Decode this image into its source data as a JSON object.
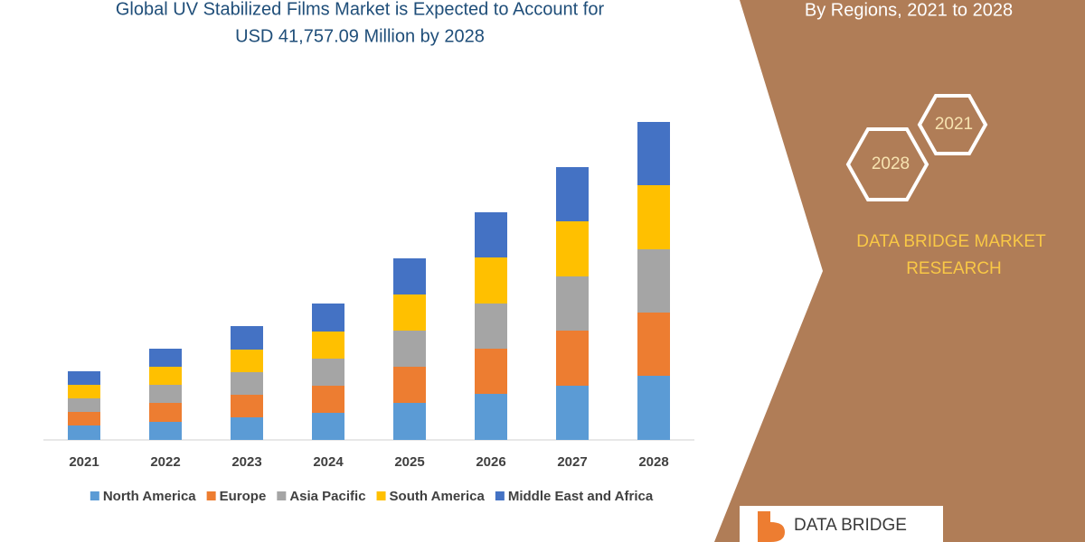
{
  "chart_data": {
    "type": "stacked_bar",
    "title": [
      "Global UV Stabilized Films Market is Expected to Account for",
      "USD 41,757.09 Million by 2028"
    ],
    "categories": [
      "2021",
      "2022",
      "2023",
      "2024",
      "2025",
      "2026",
      "2027",
      "2028"
    ],
    "series": [
      {
        "name": "North America",
        "color": "#5b9bd5",
        "values": [
          16,
          20,
          25,
          30,
          41,
          51,
          60,
          71
        ]
      },
      {
        "name": "Europe",
        "color": "#ed7d31",
        "values": [
          15,
          21,
          25,
          30,
          40,
          50,
          61,
          70
        ]
      },
      {
        "name": "Asia Pacific",
        "color": "#a5a5a5",
        "values": [
          15,
          20,
          25,
          30,
          40,
          50,
          60,
          70
        ]
      },
      {
        "name": "South America",
        "color": "#ffc000",
        "values": [
          15,
          20,
          25,
          30,
          40,
          51,
          61,
          71
        ]
      },
      {
        "name": "Middle East and Africa",
        "color": "#4472c4",
        "values": [
          15,
          20,
          26,
          31,
          40,
          50,
          60,
          70
        ]
      }
    ],
    "ylim": [
      0,
      360
    ]
  },
  "panel": {
    "heading": "By Regions, 2021 to 2028",
    "hexagons": [
      "2021",
      "2028"
    ],
    "brand": [
      "DATA BRIDGE MARKET",
      "RESEARCH"
    ],
    "logo": "DATA BRIDGE"
  }
}
